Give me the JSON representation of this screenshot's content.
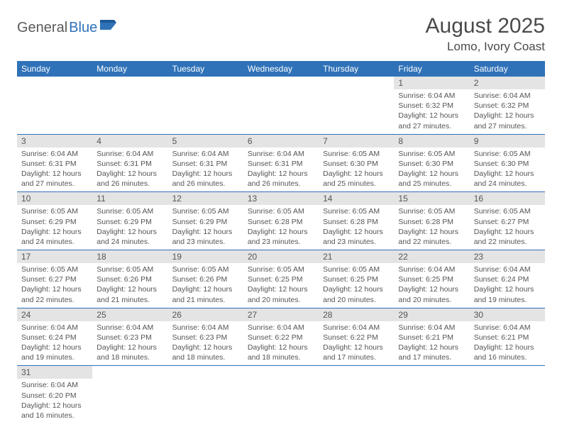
{
  "logo": {
    "text1": "General",
    "text2": "Blue"
  },
  "title": "August 2025",
  "location": "Lomo, Ivory Coast",
  "colors": {
    "header_bg": "#2f72b8",
    "header_fg": "#ffffff",
    "daynum_bg": "#e4e4e4",
    "text": "#555555",
    "rule": "#2f72b8"
  },
  "day_names": [
    "Sunday",
    "Monday",
    "Tuesday",
    "Wednesday",
    "Thursday",
    "Friday",
    "Saturday"
  ],
  "weeks": [
    [
      null,
      null,
      null,
      null,
      null,
      {
        "n": "1",
        "sr": "Sunrise: 6:04 AM",
        "ss": "Sunset: 6:32 PM",
        "dl1": "Daylight: 12 hours",
        "dl2": "and 27 minutes."
      },
      {
        "n": "2",
        "sr": "Sunrise: 6:04 AM",
        "ss": "Sunset: 6:32 PM",
        "dl1": "Daylight: 12 hours",
        "dl2": "and 27 minutes."
      }
    ],
    [
      {
        "n": "3",
        "sr": "Sunrise: 6:04 AM",
        "ss": "Sunset: 6:31 PM",
        "dl1": "Daylight: 12 hours",
        "dl2": "and 27 minutes."
      },
      {
        "n": "4",
        "sr": "Sunrise: 6:04 AM",
        "ss": "Sunset: 6:31 PM",
        "dl1": "Daylight: 12 hours",
        "dl2": "and 26 minutes."
      },
      {
        "n": "5",
        "sr": "Sunrise: 6:04 AM",
        "ss": "Sunset: 6:31 PM",
        "dl1": "Daylight: 12 hours",
        "dl2": "and 26 minutes."
      },
      {
        "n": "6",
        "sr": "Sunrise: 6:04 AM",
        "ss": "Sunset: 6:31 PM",
        "dl1": "Daylight: 12 hours",
        "dl2": "and 26 minutes."
      },
      {
        "n": "7",
        "sr": "Sunrise: 6:05 AM",
        "ss": "Sunset: 6:30 PM",
        "dl1": "Daylight: 12 hours",
        "dl2": "and 25 minutes."
      },
      {
        "n": "8",
        "sr": "Sunrise: 6:05 AM",
        "ss": "Sunset: 6:30 PM",
        "dl1": "Daylight: 12 hours",
        "dl2": "and 25 minutes."
      },
      {
        "n": "9",
        "sr": "Sunrise: 6:05 AM",
        "ss": "Sunset: 6:30 PM",
        "dl1": "Daylight: 12 hours",
        "dl2": "and 24 minutes."
      }
    ],
    [
      {
        "n": "10",
        "sr": "Sunrise: 6:05 AM",
        "ss": "Sunset: 6:29 PM",
        "dl1": "Daylight: 12 hours",
        "dl2": "and 24 minutes."
      },
      {
        "n": "11",
        "sr": "Sunrise: 6:05 AM",
        "ss": "Sunset: 6:29 PM",
        "dl1": "Daylight: 12 hours",
        "dl2": "and 24 minutes."
      },
      {
        "n": "12",
        "sr": "Sunrise: 6:05 AM",
        "ss": "Sunset: 6:29 PM",
        "dl1": "Daylight: 12 hours",
        "dl2": "and 23 minutes."
      },
      {
        "n": "13",
        "sr": "Sunrise: 6:05 AM",
        "ss": "Sunset: 6:28 PM",
        "dl1": "Daylight: 12 hours",
        "dl2": "and 23 minutes."
      },
      {
        "n": "14",
        "sr": "Sunrise: 6:05 AM",
        "ss": "Sunset: 6:28 PM",
        "dl1": "Daylight: 12 hours",
        "dl2": "and 23 minutes."
      },
      {
        "n": "15",
        "sr": "Sunrise: 6:05 AM",
        "ss": "Sunset: 6:28 PM",
        "dl1": "Daylight: 12 hours",
        "dl2": "and 22 minutes."
      },
      {
        "n": "16",
        "sr": "Sunrise: 6:05 AM",
        "ss": "Sunset: 6:27 PM",
        "dl1": "Daylight: 12 hours",
        "dl2": "and 22 minutes."
      }
    ],
    [
      {
        "n": "17",
        "sr": "Sunrise: 6:05 AM",
        "ss": "Sunset: 6:27 PM",
        "dl1": "Daylight: 12 hours",
        "dl2": "and 22 minutes."
      },
      {
        "n": "18",
        "sr": "Sunrise: 6:05 AM",
        "ss": "Sunset: 6:26 PM",
        "dl1": "Daylight: 12 hours",
        "dl2": "and 21 minutes."
      },
      {
        "n": "19",
        "sr": "Sunrise: 6:05 AM",
        "ss": "Sunset: 6:26 PM",
        "dl1": "Daylight: 12 hours",
        "dl2": "and 21 minutes."
      },
      {
        "n": "20",
        "sr": "Sunrise: 6:05 AM",
        "ss": "Sunset: 6:25 PM",
        "dl1": "Daylight: 12 hours",
        "dl2": "and 20 minutes."
      },
      {
        "n": "21",
        "sr": "Sunrise: 6:05 AM",
        "ss": "Sunset: 6:25 PM",
        "dl1": "Daylight: 12 hours",
        "dl2": "and 20 minutes."
      },
      {
        "n": "22",
        "sr": "Sunrise: 6:04 AM",
        "ss": "Sunset: 6:25 PM",
        "dl1": "Daylight: 12 hours",
        "dl2": "and 20 minutes."
      },
      {
        "n": "23",
        "sr": "Sunrise: 6:04 AM",
        "ss": "Sunset: 6:24 PM",
        "dl1": "Daylight: 12 hours",
        "dl2": "and 19 minutes."
      }
    ],
    [
      {
        "n": "24",
        "sr": "Sunrise: 6:04 AM",
        "ss": "Sunset: 6:24 PM",
        "dl1": "Daylight: 12 hours",
        "dl2": "and 19 minutes."
      },
      {
        "n": "25",
        "sr": "Sunrise: 6:04 AM",
        "ss": "Sunset: 6:23 PM",
        "dl1": "Daylight: 12 hours",
        "dl2": "and 18 minutes."
      },
      {
        "n": "26",
        "sr": "Sunrise: 6:04 AM",
        "ss": "Sunset: 6:23 PM",
        "dl1": "Daylight: 12 hours",
        "dl2": "and 18 minutes."
      },
      {
        "n": "27",
        "sr": "Sunrise: 6:04 AM",
        "ss": "Sunset: 6:22 PM",
        "dl1": "Daylight: 12 hours",
        "dl2": "and 18 minutes."
      },
      {
        "n": "28",
        "sr": "Sunrise: 6:04 AM",
        "ss": "Sunset: 6:22 PM",
        "dl1": "Daylight: 12 hours",
        "dl2": "and 17 minutes."
      },
      {
        "n": "29",
        "sr": "Sunrise: 6:04 AM",
        "ss": "Sunset: 6:21 PM",
        "dl1": "Daylight: 12 hours",
        "dl2": "and 17 minutes."
      },
      {
        "n": "30",
        "sr": "Sunrise: 6:04 AM",
        "ss": "Sunset: 6:21 PM",
        "dl1": "Daylight: 12 hours",
        "dl2": "and 16 minutes."
      }
    ],
    [
      {
        "n": "31",
        "sr": "Sunrise: 6:04 AM",
        "ss": "Sunset: 6:20 PM",
        "dl1": "Daylight: 12 hours",
        "dl2": "and 16 minutes."
      },
      null,
      null,
      null,
      null,
      null,
      null
    ]
  ]
}
